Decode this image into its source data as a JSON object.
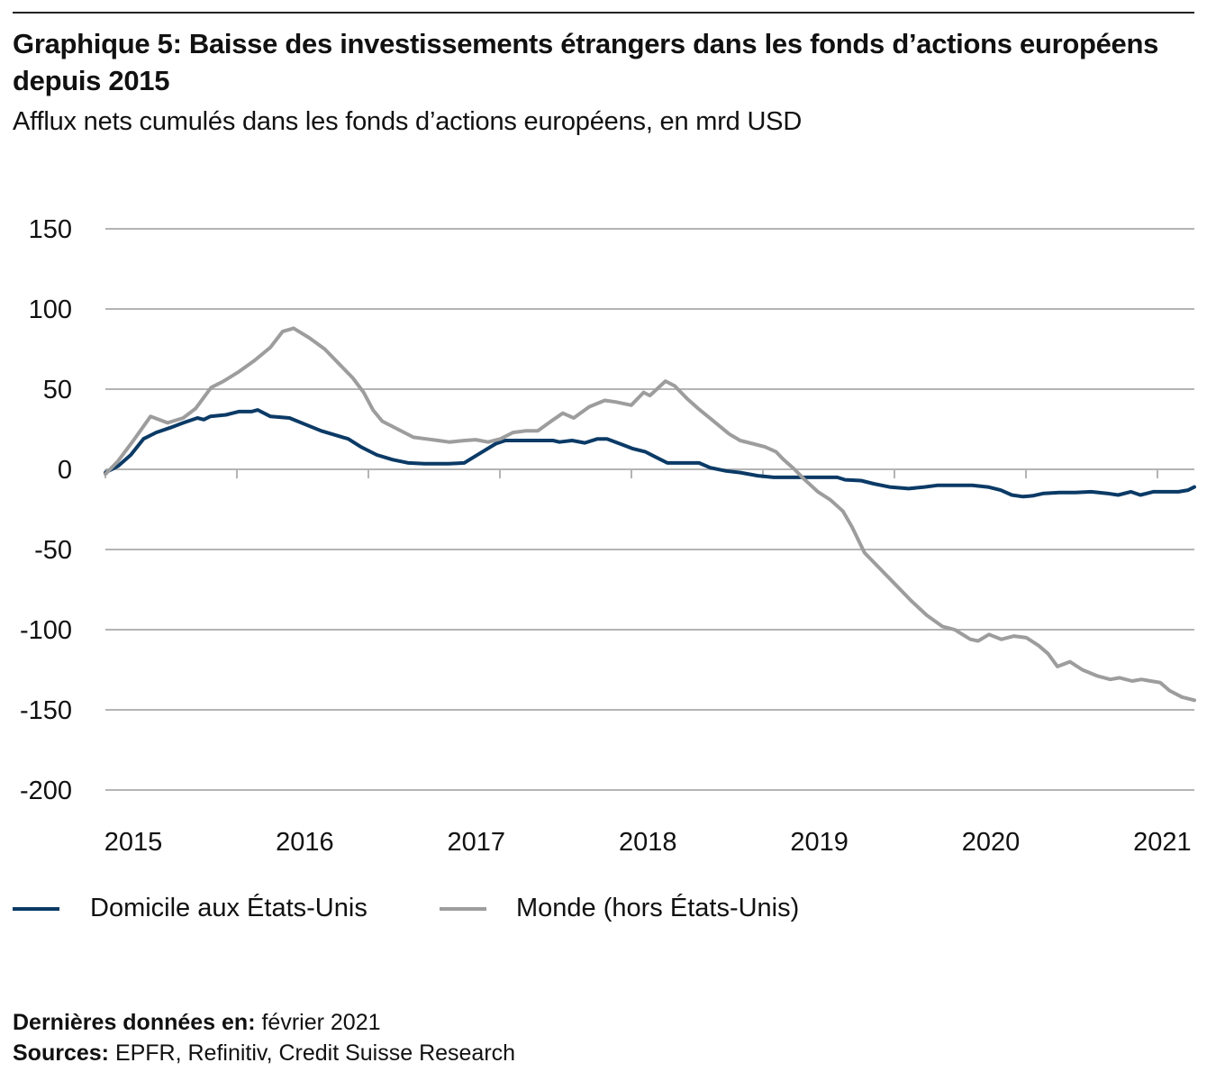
{
  "header": {
    "title": "Graphique 5: Baisse des investissements étrangers dans les fonds d’actions européens depuis 2015",
    "subtitle": "Afflux nets cumulés dans les fonds d’actions européens, en mrd USD"
  },
  "legend": [
    {
      "label": "Domicile aux États-Unis",
      "color": "#0b3a66"
    },
    {
      "label": "Monde (hors États-Unis)",
      "color": "#9d9d9d"
    }
  ],
  "footer": {
    "last_data_label": "Dernières données en:",
    "last_data_value": "février 2021",
    "sources_label": "Sources:",
    "sources_value": "EPFR, Refinitiv, Credit Suisse Research"
  },
  "chart_data": {
    "type": "line",
    "title": "Graphique 5: Baisse des investissements étrangers dans les fonds d’actions européens depuis 2015",
    "subtitle": "Afflux nets cumulés dans les fonds d’actions européens, en mrd USD",
    "xlabel": "",
    "ylabel": "mrd USD",
    "ylim": [
      -200,
      150
    ],
    "yticks": [
      150,
      100,
      50,
      0,
      -50,
      -100,
      -150,
      -200
    ],
    "ytick_labels": [
      "150",
      "100",
      "50",
      "0",
      "-50",
      "-100",
      "-150",
      "-200"
    ],
    "xlim": [
      2014.84,
      2021.2
    ],
    "xtick_labels": [
      {
        "label": "2015",
        "x": 2015.0
      },
      {
        "label": "2016",
        "x": 2016.0
      },
      {
        "label": "2017",
        "x": 2017.0
      },
      {
        "label": "2018",
        "x": 2018.0
      },
      {
        "label": "2019",
        "x": 2019.0
      },
      {
        "label": "2020",
        "x": 2020.0
      },
      {
        "label": "2021",
        "x": 2021.0
      }
    ],
    "grid": true,
    "legend_position": "bottom-left",
    "series": [
      {
        "name": "Domicile aux États-Unis",
        "color": "#0b3a66",
        "points": [
          [
            2014.84,
            -2
          ],
          [
            2014.92,
            2
          ],
          [
            2015.0,
            9
          ],
          [
            2015.08,
            19
          ],
          [
            2015.16,
            23
          ],
          [
            2015.25,
            26
          ],
          [
            2015.33,
            29
          ],
          [
            2015.42,
            32
          ],
          [
            2015.46,
            31
          ],
          [
            2015.5,
            33
          ],
          [
            2015.6,
            34
          ],
          [
            2015.68,
            36
          ],
          [
            2015.76,
            36
          ],
          [
            2015.8,
            37
          ],
          [
            2015.88,
            33
          ],
          [
            2016.0,
            32
          ],
          [
            2016.1,
            28
          ],
          [
            2016.2,
            24
          ],
          [
            2016.3,
            21
          ],
          [
            2016.37,
            19
          ],
          [
            2016.45,
            14
          ],
          [
            2016.55,
            9
          ],
          [
            2016.65,
            6
          ],
          [
            2016.75,
            4
          ],
          [
            2016.85,
            3.5
          ],
          [
            2017.0,
            3.5
          ],
          [
            2017.1,
            4
          ],
          [
            2017.2,
            10
          ],
          [
            2017.3,
            16
          ],
          [
            2017.36,
            18
          ],
          [
            2017.5,
            18
          ],
          [
            2017.6,
            18
          ],
          [
            2017.66,
            18
          ],
          [
            2017.7,
            17
          ],
          [
            2017.78,
            18
          ],
          [
            2017.86,
            16.5
          ],
          [
            2017.94,
            19
          ],
          [
            2018.0,
            19
          ],
          [
            2018.08,
            16
          ],
          [
            2018.16,
            13
          ],
          [
            2018.24,
            11
          ],
          [
            2018.3,
            8
          ],
          [
            2018.38,
            4
          ],
          [
            2018.45,
            4
          ],
          [
            2018.58,
            4
          ],
          [
            2018.65,
            1
          ],
          [
            2018.75,
            -1
          ],
          [
            2018.84,
            -2
          ],
          [
            2018.95,
            -4
          ],
          [
            2019.05,
            -5
          ],
          [
            2019.2,
            -5
          ],
          [
            2019.35,
            -5
          ],
          [
            2019.45,
            -5
          ],
          [
            2019.5,
            -6.5
          ],
          [
            2019.6,
            -7
          ],
          [
            2019.68,
            -9
          ],
          [
            2019.78,
            -11
          ],
          [
            2019.9,
            -12
          ],
          [
            2020.0,
            -11
          ],
          [
            2020.08,
            -10
          ],
          [
            2020.2,
            -10
          ],
          [
            2020.3,
            -10
          ],
          [
            2020.4,
            -11
          ],
          [
            2020.48,
            -13
          ],
          [
            2020.55,
            -16
          ],
          [
            2020.62,
            -17
          ],
          [
            2020.68,
            -16.5
          ],
          [
            2020.75,
            -15
          ],
          [
            2020.85,
            -14.5
          ],
          [
            2020.95,
            -14.5
          ],
          [
            2021.05,
            -14
          ],
          [
            2021.15,
            -15
          ],
          [
            2021.22,
            -16
          ],
          [
            2021.3,
            -14
          ],
          [
            2021.36,
            -16
          ],
          [
            2021.44,
            -14
          ],
          [
            2021.52,
            -14
          ],
          [
            2021.6,
            -14
          ],
          [
            2021.66,
            -13
          ],
          [
            2021.7,
            -11
          ]
        ]
      },
      {
        "name": "Monde (hors États-Unis)",
        "color": "#9d9d9d",
        "points": [
          [
            2014.84,
            -3
          ],
          [
            2014.92,
            5
          ],
          [
            2015.02,
            18
          ],
          [
            2015.13,
            33
          ],
          [
            2015.24,
            29
          ],
          [
            2015.34,
            32
          ],
          [
            2015.42,
            38
          ],
          [
            2015.52,
            51
          ],
          [
            2015.6,
            55
          ],
          [
            2015.7,
            61
          ],
          [
            2015.8,
            68
          ],
          [
            2015.9,
            76
          ],
          [
            2015.98,
            86
          ],
          [
            2016.05,
            88
          ],
          [
            2016.15,
            82
          ],
          [
            2016.25,
            75
          ],
          [
            2016.35,
            65
          ],
          [
            2016.43,
            57
          ],
          [
            2016.5,
            48
          ],
          [
            2016.56,
            37
          ],
          [
            2016.62,
            30
          ],
          [
            2016.72,
            25
          ],
          [
            2016.82,
            20
          ],
          [
            2016.9,
            19
          ],
          [
            2016.98,
            18
          ],
          [
            2017.05,
            17
          ],
          [
            2017.15,
            18
          ],
          [
            2017.22,
            18.5
          ],
          [
            2017.3,
            17
          ],
          [
            2017.38,
            19
          ],
          [
            2017.46,
            23
          ],
          [
            2017.54,
            24
          ],
          [
            2017.62,
            24
          ],
          [
            2017.72,
            31
          ],
          [
            2017.78,
            35
          ],
          [
            2017.85,
            32
          ],
          [
            2017.95,
            39
          ],
          [
            2018.05,
            43
          ],
          [
            2018.12,
            42
          ],
          [
            2018.22,
            40
          ],
          [
            2018.3,
            48
          ],
          [
            2018.34,
            46
          ],
          [
            2018.44,
            55
          ],
          [
            2018.5,
            52
          ],
          [
            2018.58,
            44
          ],
          [
            2018.65,
            38
          ],
          [
            2018.75,
            30
          ],
          [
            2018.85,
            22
          ],
          [
            2018.92,
            18
          ],
          [
            2019.0,
            16
          ],
          [
            2019.08,
            14
          ],
          [
            2019.15,
            11
          ],
          [
            2019.2,
            6
          ],
          [
            2019.27,
            0
          ],
          [
            2019.33,
            -6
          ],
          [
            2019.42,
            -14
          ],
          [
            2019.5,
            -19
          ],
          [
            2019.58,
            -26
          ],
          [
            2019.64,
            -36
          ],
          [
            2019.72,
            -52
          ],
          [
            2019.82,
            -62
          ],
          [
            2019.92,
            -72
          ],
          [
            2020.02,
            -82
          ],
          [
            2020.12,
            -91
          ],
          [
            2020.22,
            -98
          ],
          [
            2020.3,
            -100
          ],
          [
            2020.4,
            -106
          ],
          [
            2020.45,
            -107
          ],
          [
            2020.52,
            -103
          ],
          [
            2020.6,
            -106
          ],
          [
            2020.68,
            -104
          ],
          [
            2020.76,
            -105
          ],
          [
            2020.84,
            -110
          ],
          [
            2020.9,
            -115
          ],
          [
            2020.96,
            -123
          ],
          [
            2021.04,
            -120
          ],
          [
            2021.12,
            -125
          ],
          [
            2021.22,
            -129
          ],
          [
            2021.3,
            -131
          ],
          [
            2021.36,
            -130
          ],
          [
            2021.44,
            -132
          ],
          [
            2021.5,
            -131
          ],
          [
            2021.56,
            -132
          ],
          [
            2021.62,
            -133
          ],
          [
            2021.68,
            -138
          ],
          [
            2021.76,
            -142
          ],
          [
            2021.84,
            -144
          ]
        ]
      }
    ]
  }
}
